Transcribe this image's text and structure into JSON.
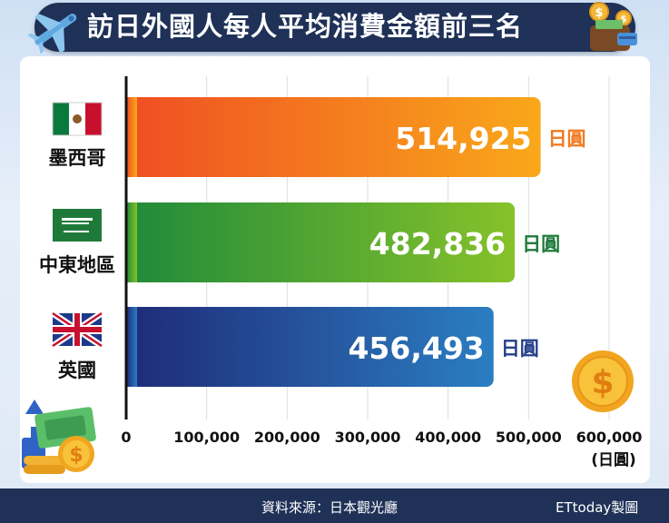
{
  "title": "訪日外國人每人平均消費金額前三名",
  "footer": {
    "source": "資料來源：日本觀光廳",
    "credit": "ETtoday製圖"
  },
  "icons": {
    "title_left": "airplane-icon",
    "title_right": "wallet-money-icon",
    "coin_right": "dollar-coin-icon",
    "bottom_left": "money-growth-icon"
  },
  "colors": {
    "title_bg": "#1f3157",
    "mexico": "#f07a22",
    "middle_east": "#3a9a32",
    "uk": "#24408a"
  },
  "chart_data": {
    "type": "bar",
    "orientation": "horizontal",
    "categories": [
      "墨西哥",
      "中東地區",
      "英國"
    ],
    "values": [
      514925,
      482836,
      456493
    ],
    "value_labels": [
      "514,925",
      "482,836",
      "456,493"
    ],
    "unit_labels": [
      "日圓",
      "日圓",
      "日圓"
    ],
    "flags": [
      "mexico-flag-icon",
      "saudi-arabia-flag-icon",
      "uk-flag-icon"
    ],
    "xlim": [
      0,
      600000
    ],
    "x_ticks": [
      "0",
      "100,000",
      "200,000",
      "300,000",
      "400,000",
      "500,000",
      "600,000"
    ],
    "xlabel": "(日圓)",
    "grid": "vertical"
  }
}
